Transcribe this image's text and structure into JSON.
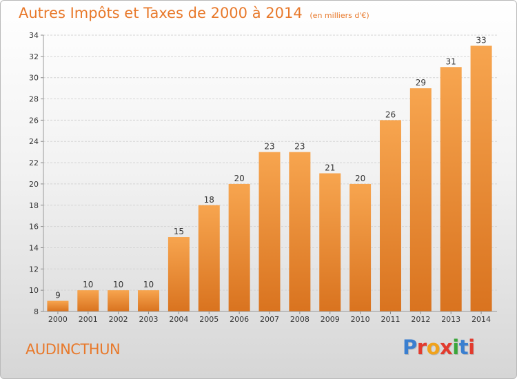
{
  "header": {
    "title": "Autres Impôts et Taxes de 2000 à 2014",
    "unit": "(en milliers d'€)"
  },
  "footer": {
    "commune": "AUDINCTHUN",
    "logo_text": "Proxiti"
  },
  "colors": {
    "accent": "#e8792b",
    "bar_light": "#f7a54f",
    "bar_dark": "#d9731f",
    "logo_letters": [
      "#3a7fd0",
      "#e23b2e",
      "#f0a21c",
      "#e23b2e",
      "#3aa63a",
      "#3a7fd0",
      "#e23b2e"
    ]
  },
  "chart_data": {
    "type": "bar",
    "title": "Autres Impôts et Taxes de 2000 à 2014",
    "subtitle": "(en milliers d'€)",
    "categories": [
      "2000",
      "2001",
      "2002",
      "2003",
      "2004",
      "2005",
      "2006",
      "2007",
      "2008",
      "2009",
      "2010",
      "2011",
      "2012",
      "2013",
      "2014"
    ],
    "values": [
      9,
      10,
      10,
      10,
      15,
      18,
      20,
      23,
      23,
      21,
      20,
      26,
      29,
      31,
      33
    ],
    "ylim": [
      8,
      34
    ],
    "yticks": [
      8,
      10,
      12,
      14,
      16,
      18,
      20,
      22,
      24,
      26,
      28,
      30,
      32,
      34
    ],
    "grid": true,
    "data_labels": true
  }
}
